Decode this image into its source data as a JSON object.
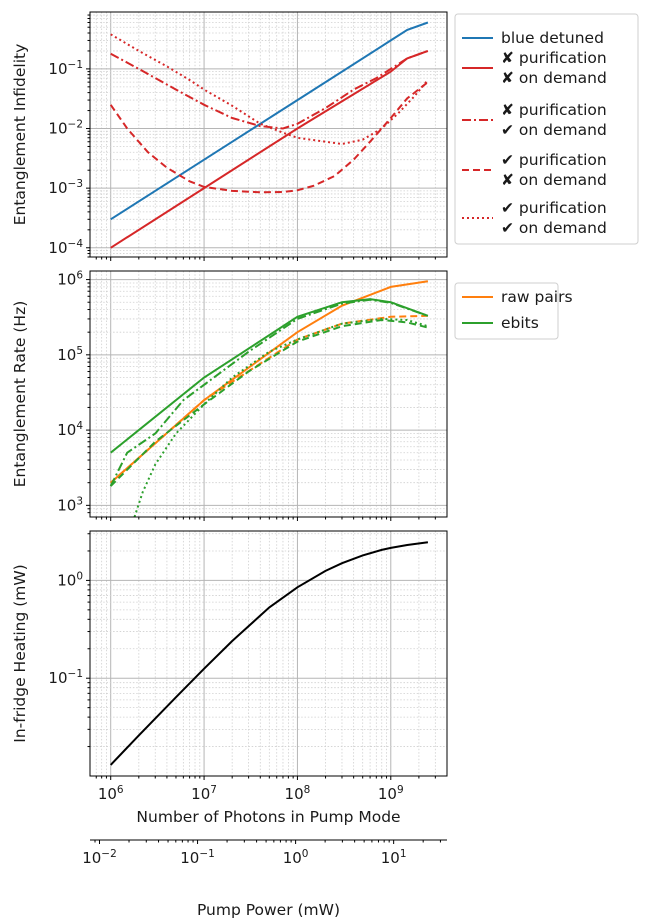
{
  "chart_data": [
    {
      "type": "line",
      "ylabel": "Entanglement Infidelity",
      "xscale": "log",
      "yscale": "log",
      "xlim": [
        600000,
        4000000000
      ],
      "ylim": [
        7e-05,
        0.9
      ],
      "yticks": [
        {
          "v": 0.0001,
          "b": "10",
          "e": "−4"
        },
        {
          "v": 0.001,
          "b": "10",
          "e": "−3"
        },
        {
          "v": 0.01,
          "b": "10",
          "e": "−2"
        },
        {
          "v": 0.1,
          "b": "10",
          "e": "−1"
        }
      ],
      "grid": true,
      "legend": {
        "position": "outside-right",
        "entries": [
          {
            "text": "blue detuned",
            "series": 0
          },
          {
            "text": "✘ purification",
            "text2": "✘ on demand",
            "series": 1
          },
          {
            "text": "✘ purification",
            "text2": "✔ on demand",
            "series": 2
          },
          {
            "text": "✔ purification",
            "text2": "✘ on demand",
            "series": 3
          },
          {
            "text": "✔ purification",
            "text2": "✔ on demand",
            "series": 4
          }
        ]
      },
      "series": [
        {
          "color": "#1f77b4",
          "dash": "",
          "x": [
            1000000.0,
            10000000.0,
            100000000.0,
            1000000000.0,
            1500000000.0,
            2500000000.0
          ],
          "y": [
            0.0003,
            0.003,
            0.03,
            0.3,
            0.45,
            0.6
          ]
        },
        {
          "color": "#d62728",
          "dash": "",
          "x": [
            1000000.0,
            10000000.0,
            100000000.0,
            1000000000.0,
            1500000000.0,
            2500000000.0
          ],
          "y": [
            0.0001,
            0.001,
            0.01,
            0.09,
            0.15,
            0.2
          ]
        },
        {
          "color": "#d62728",
          "dash": "9 3 2 3",
          "x": [
            1000000.0,
            2000000.0,
            5000000.0,
            10000000.0,
            20000000.0,
            40000000.0,
            70000000.0,
            100000000.0,
            200000000.0,
            400000000.0,
            700000000.0,
            1000000000.0,
            1500000000.0,
            2500000000.0
          ],
          "y": [
            0.18,
            0.1,
            0.045,
            0.025,
            0.015,
            0.011,
            0.01,
            0.012,
            0.022,
            0.045,
            0.07,
            0.1,
            0.15,
            0.2
          ]
        },
        {
          "color": "#d62728",
          "dash": "7 4",
          "x": [
            1000000.0,
            1500000.0,
            2500000.0,
            4000000.0,
            7000000.0,
            10000000.0,
            20000000.0,
            40000000.0,
            70000000.0,
            100000000.0,
            150000000.0,
            250000000.0,
            400000000.0,
            600000000.0,
            800000000.0,
            1000000000.0,
            1500000000.0,
            2500000000.0
          ],
          "y": [
            0.025,
            0.01,
            0.004,
            0.0022,
            0.0013,
            0.00105,
            0.0009,
            0.00085,
            0.00086,
            0.00092,
            0.0011,
            0.0016,
            0.003,
            0.006,
            0.01,
            0.015,
            0.032,
            0.06
          ]
        },
        {
          "color": "#d62728",
          "dash": "2 3",
          "x": [
            1000000.0,
            2000000.0,
            4000000.0,
            7000000.0,
            10000000.0,
            20000000.0,
            40000000.0,
            70000000.0,
            100000000.0,
            200000000.0,
            300000000.0,
            500000000.0,
            800000000.0,
            1200000000.0,
            1800000000.0,
            2500000000.0
          ],
          "y": [
            0.38,
            0.2,
            0.11,
            0.065,
            0.045,
            0.024,
            0.012,
            0.0085,
            0.007,
            0.006,
            0.0055,
            0.0065,
            0.01,
            0.018,
            0.035,
            0.065
          ]
        }
      ]
    },
    {
      "type": "line",
      "ylabel": "Entanglement Rate (Hz)",
      "xscale": "log",
      "yscale": "log",
      "xlim": [
        600000,
        4000000000
      ],
      "ylim": [
        700,
        1300000
      ],
      "yticks": [
        {
          "v": 1000,
          "b": "10",
          "e": "3"
        },
        {
          "v": 10000,
          "b": "10",
          "e": "4"
        },
        {
          "v": 100000,
          "b": "10",
          "e": "5"
        },
        {
          "v": 1000000,
          "b": "10",
          "e": "6"
        }
      ],
      "grid": true,
      "legend": {
        "position": "outside-right",
        "entries": [
          {
            "text": "raw pairs",
            "series": 0
          },
          {
            "text": "ebits",
            "series": 2
          }
        ]
      },
      "series": [
        {
          "color": "#ff7f0e",
          "dash": "",
          "x": [
            1000000.0,
            10000000.0,
            100000000.0,
            300000000.0,
            1000000000.0,
            2500000000.0
          ],
          "y": [
            2000,
            25000,
            200000,
            450000,
            800000,
            950000
          ]
        },
        {
          "color": "#ff7f0e",
          "dash": "7 4",
          "x": [
            1000000.0,
            10000000.0,
            100000000.0,
            300000000.0,
            1000000000.0,
            2500000000.0
          ],
          "y": [
            2000,
            25000,
            160000,
            260000,
            320000,
            330000
          ]
        },
        {
          "color": "#2ca02c",
          "dash": "",
          "x": [
            1000000.0,
            10000000.0,
            100000000.0,
            300000000.0,
            600000000.0,
            1000000000.0,
            2500000000.0
          ],
          "y": [
            5000,
            50000,
            320000,
            500000,
            550000,
            500000,
            330000
          ]
        },
        {
          "color": "#2ca02c",
          "dash": "9 3 2 3",
          "x": [
            1000000.0,
            1500000.0,
            3000000.0,
            6000000.0,
            10000000.0,
            30000000.0,
            100000000.0,
            300000000.0,
            600000000.0,
            1000000000.0,
            2500000000.0
          ],
          "y": [
            1800,
            5000,
            9000,
            25000,
            40000,
            110000,
            300000,
            480000,
            540000,
            490000,
            330000
          ]
        },
        {
          "color": "#2ca02c",
          "dash": "7 4",
          "x": [
            1000000.0,
            3000000.0,
            10000000.0,
            30000000.0,
            100000000.0,
            300000000.0,
            800000000.0,
            1500000000.0,
            2500000000.0
          ],
          "y": [
            1800,
            7000,
            22000,
            60000,
            150000,
            240000,
            290000,
            270000,
            230000
          ]
        },
        {
          "color": "#2ca02c",
          "dash": "2 3",
          "x": [
            1800000.0,
            2200000.0,
            3000000.0,
            5000000.0,
            10000000.0,
            20000000.0,
            50000000.0,
            100000000.0,
            300000000.0,
            800000000.0,
            1500000000.0,
            2500000000.0
          ],
          "y": [
            700,
            1500,
            3500,
            9000,
            22000,
            50000,
            110000,
            160000,
            260000,
            300000,
            290000,
            240000
          ]
        }
      ]
    },
    {
      "type": "line",
      "ylabel": "In-fridge Heating (mW)",
      "xlabel": "Number of Photons in Pump Mode",
      "xscale": "log",
      "yscale": "log",
      "xlim": [
        600000,
        4000000000
      ],
      "ylim": [
        0.01,
        3.2
      ],
      "yticks": [
        {
          "v": 0.1,
          "b": "10",
          "e": "−1"
        },
        {
          "v": 1,
          "b": "10",
          "e": "0"
        }
      ],
      "xticks": [
        {
          "v": 1000000,
          "b": "10",
          "e": "6"
        },
        {
          "v": 10000000,
          "b": "10",
          "e": "7"
        },
        {
          "v": 100000000,
          "b": "10",
          "e": "8"
        },
        {
          "v": 1000000000,
          "b": "10",
          "e": "9"
        }
      ],
      "grid": true,
      "series": [
        {
          "color": "#000000",
          "dash": "",
          "x": [
            1000000.0,
            2000000.0,
            5000000.0,
            10000000.0,
            20000000.0,
            50000000.0,
            100000000.0,
            200000000.0,
            300000000.0,
            500000000.0,
            800000000.0,
            1000000000.0,
            1500000000.0,
            2500000000.0
          ],
          "y": [
            0.013,
            0.026,
            0.064,
            0.125,
            0.24,
            0.53,
            0.85,
            1.25,
            1.5,
            1.8,
            2.05,
            2.15,
            2.3,
            2.45
          ]
        }
      ]
    },
    {
      "type": "axis",
      "xlabel": "Pump Power (mW)",
      "xscale": "log",
      "xlim": [
        0.008,
        35
      ],
      "xticks": [
        {
          "v": 0.01,
          "b": "10",
          "e": "−2"
        },
        {
          "v": 0.1,
          "b": "10",
          "e": "−1"
        },
        {
          "v": 1,
          "b": "10",
          "e": "0"
        },
        {
          "v": 10,
          "b": "10",
          "e": "1"
        }
      ]
    }
  ]
}
